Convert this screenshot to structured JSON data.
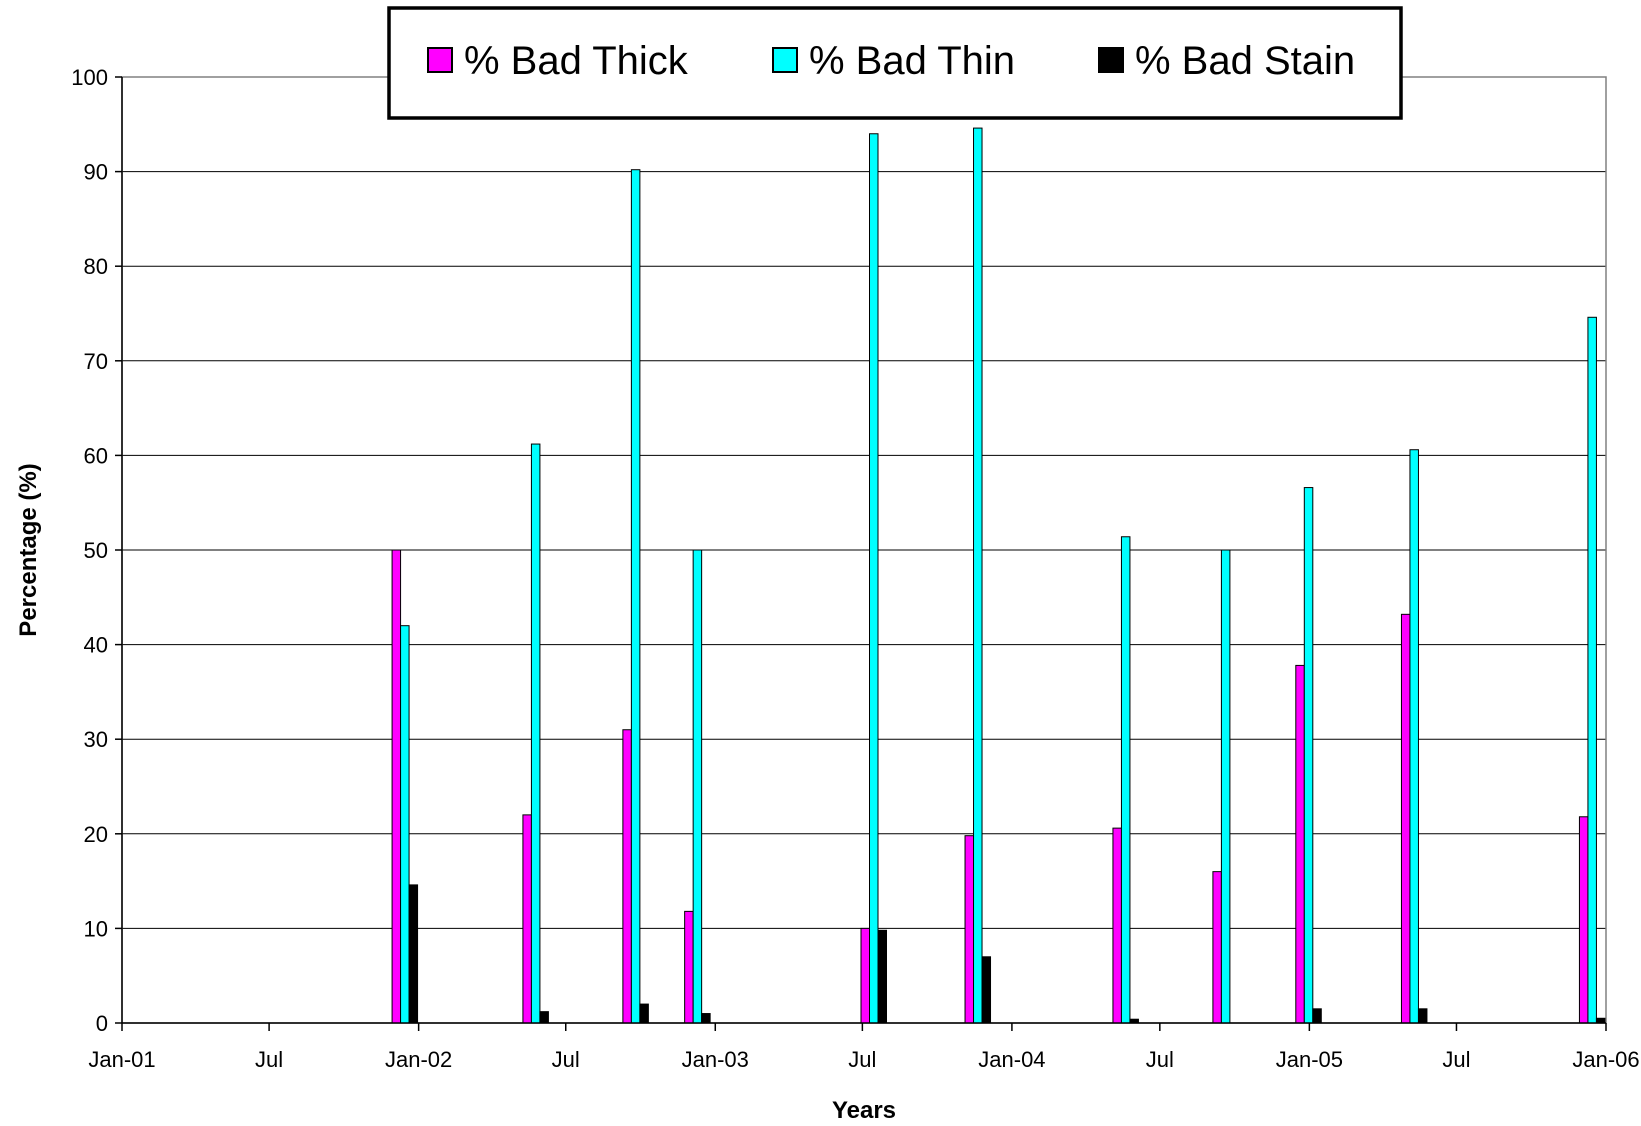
{
  "chart_data": {
    "type": "bar",
    "title": "",
    "xlabel": "Years",
    "ylabel": "Percentage (%)",
    "ylim": [
      0,
      100
    ],
    "yticks": [
      0,
      10,
      20,
      30,
      40,
      50,
      60,
      70,
      80,
      90,
      100
    ],
    "xlim": [
      "2001-01-01",
      "2006-01-01"
    ],
    "xticks": [
      {
        "date": "2001-01-01",
        "label": "Jan-01"
      },
      {
        "date": "2001-07-01",
        "label": "Jul"
      },
      {
        "date": "2002-01-01",
        "label": "Jan-02"
      },
      {
        "date": "2002-07-01",
        "label": "Jul"
      },
      {
        "date": "2003-01-01",
        "label": "Jan-03"
      },
      {
        "date": "2003-07-01",
        "label": "Jul"
      },
      {
        "date": "2004-01-01",
        "label": "Jan-04"
      },
      {
        "date": "2004-07-01",
        "label": "Jul"
      },
      {
        "date": "2005-01-01",
        "label": "Jan-05"
      },
      {
        "date": "2005-07-01",
        "label": "Jul"
      },
      {
        "date": "2006-01-01",
        "label": "Jan-06"
      }
    ],
    "grid": "horizontal",
    "legend_position": "top",
    "dates": [
      "2001-12-15",
      "2002-05-25",
      "2002-09-25",
      "2002-12-10",
      "2003-07-15",
      "2003-11-20",
      "2004-05-20",
      "2004-09-20",
      "2004-12-31",
      "2005-05-10",
      "2005-12-15"
    ],
    "series": [
      {
        "name": "% Bad Thick",
        "color": "#ff00ff",
        "values": [
          50,
          22,
          31,
          11.8,
          10,
          19.8,
          20.6,
          16,
          37.8,
          43.2,
          21.8
        ]
      },
      {
        "name": "% Bad Thin",
        "color": "#00ffff",
        "values": [
          42,
          61.2,
          90.2,
          50,
          94,
          94.6,
          51.4,
          50,
          56.6,
          60.6,
          74.6
        ]
      },
      {
        "name": "% Bad Stain",
        "color": "#000000",
        "values": [
          14.6,
          1.2,
          2,
          1,
          9.8,
          7,
          0.4,
          0,
          1.5,
          1.5,
          0.5
        ]
      }
    ]
  }
}
